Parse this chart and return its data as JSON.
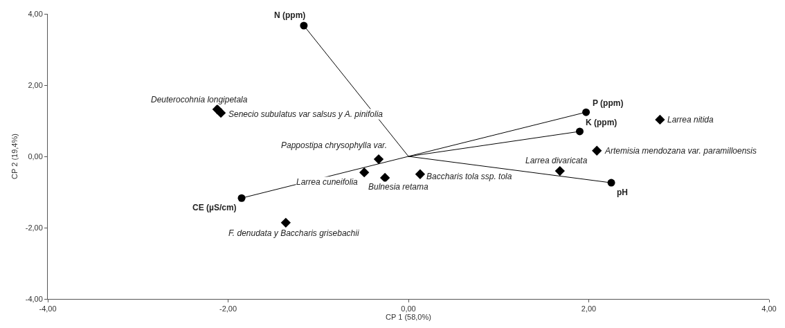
{
  "chart_data": {
    "type": "scatter",
    "xlabel": "CP 1 (58,0%)",
    "ylabel": "CP 2 (19,4%)",
    "xlim": [
      -4,
      4
    ],
    "ylim": [
      -4,
      4
    ],
    "xticks": [
      {
        "value": -4,
        "label": "-4,00"
      },
      {
        "value": -2,
        "label": "-2,00"
      },
      {
        "value": 0,
        "label": "0,00"
      },
      {
        "value": 2,
        "label": "2,00"
      },
      {
        "value": 4,
        "label": "4,00"
      }
    ],
    "yticks": [
      {
        "value": -4,
        "label": "-4,00"
      },
      {
        "value": -2,
        "label": "-2,00"
      },
      {
        "value": 0,
        "label": "0,00"
      },
      {
        "value": 2,
        "label": "2,00"
      },
      {
        "value": 4,
        "label": "4,00"
      }
    ],
    "grid": false,
    "series": [
      {
        "type": "line",
        "color": "#000000",
        "marker": "none",
        "x": [
          0,
          -1.16,
          null,
          0,
          1.97,
          null,
          0,
          1.9,
          null,
          0,
          2.25,
          null,
          0,
          -1.85
        ],
        "values": [
          0,
          3.67,
          null,
          0,
          1.24,
          null,
          0,
          0.7,
          null,
          0,
          -0.74,
          null,
          0,
          -1.17
        ]
      },
      {
        "color": "#000000",
        "marker": "circle",
        "x": [
          -1.16,
          1.97,
          1.9,
          2.25,
          -1.85
        ],
        "values": [
          3.67,
          1.24,
          0.7,
          -0.74,
          -1.17
        ]
      },
      {
        "color": "#000000",
        "marker": "diamond",
        "x": [
          -2.12,
          -2.08,
          -0.33,
          -0.49,
          -0.26,
          0.13,
          1.68,
          2.09,
          2.79,
          -1.36
        ],
        "values": [
          1.32,
          1.22,
          -0.08,
          -0.45,
          -0.6,
          -0.5,
          -0.41,
          0.16,
          1.03,
          -1.86
        ]
      }
    ],
    "annotations": [
      {
        "text": "N (ppm)",
        "x": -1.16,
        "y": 3.67
      },
      {
        "text": "P (ppm)",
        "x": 1.97,
        "y": 1.24
      },
      {
        "text": "K (ppm)",
        "x": 1.9,
        "y": 0.7
      },
      {
        "text": "pH",
        "x": 2.25,
        "y": -0.74
      },
      {
        "text": "CE (µS/cm)",
        "x": -1.85,
        "y": -1.17
      },
      {
        "text": "Deuterocohnia longipetala",
        "x": -2.12,
        "y": 1.32
      },
      {
        "text": "Senecio subulatus var salsus y A. pinifolia",
        "x": -2.08,
        "y": 1.22
      },
      {
        "text": "Pappostipa chrysophylla var.",
        "x": -0.33,
        "y": -0.08
      },
      {
        "text": "Larrea cuneifolia",
        "x": -0.49,
        "y": -0.45
      },
      {
        "text": "Bulnesia retama",
        "x": -0.26,
        "y": -0.6
      },
      {
        "text": "Baccharis tola ssp. tola",
        "x": 0.13,
        "y": -0.5
      },
      {
        "text": "Larrea divaricata",
        "x": 1.68,
        "y": -0.41
      },
      {
        "text": "Artemisia mendozana var. paramilloensis",
        "x": 2.09,
        "y": 0.16
      },
      {
        "text": "Larrea nitida",
        "x": 2.79,
        "y": 1.03
      },
      {
        "text": "F. denudata y Baccharis grisebachii",
        "x": -1.36,
        "y": -1.86
      }
    ]
  }
}
